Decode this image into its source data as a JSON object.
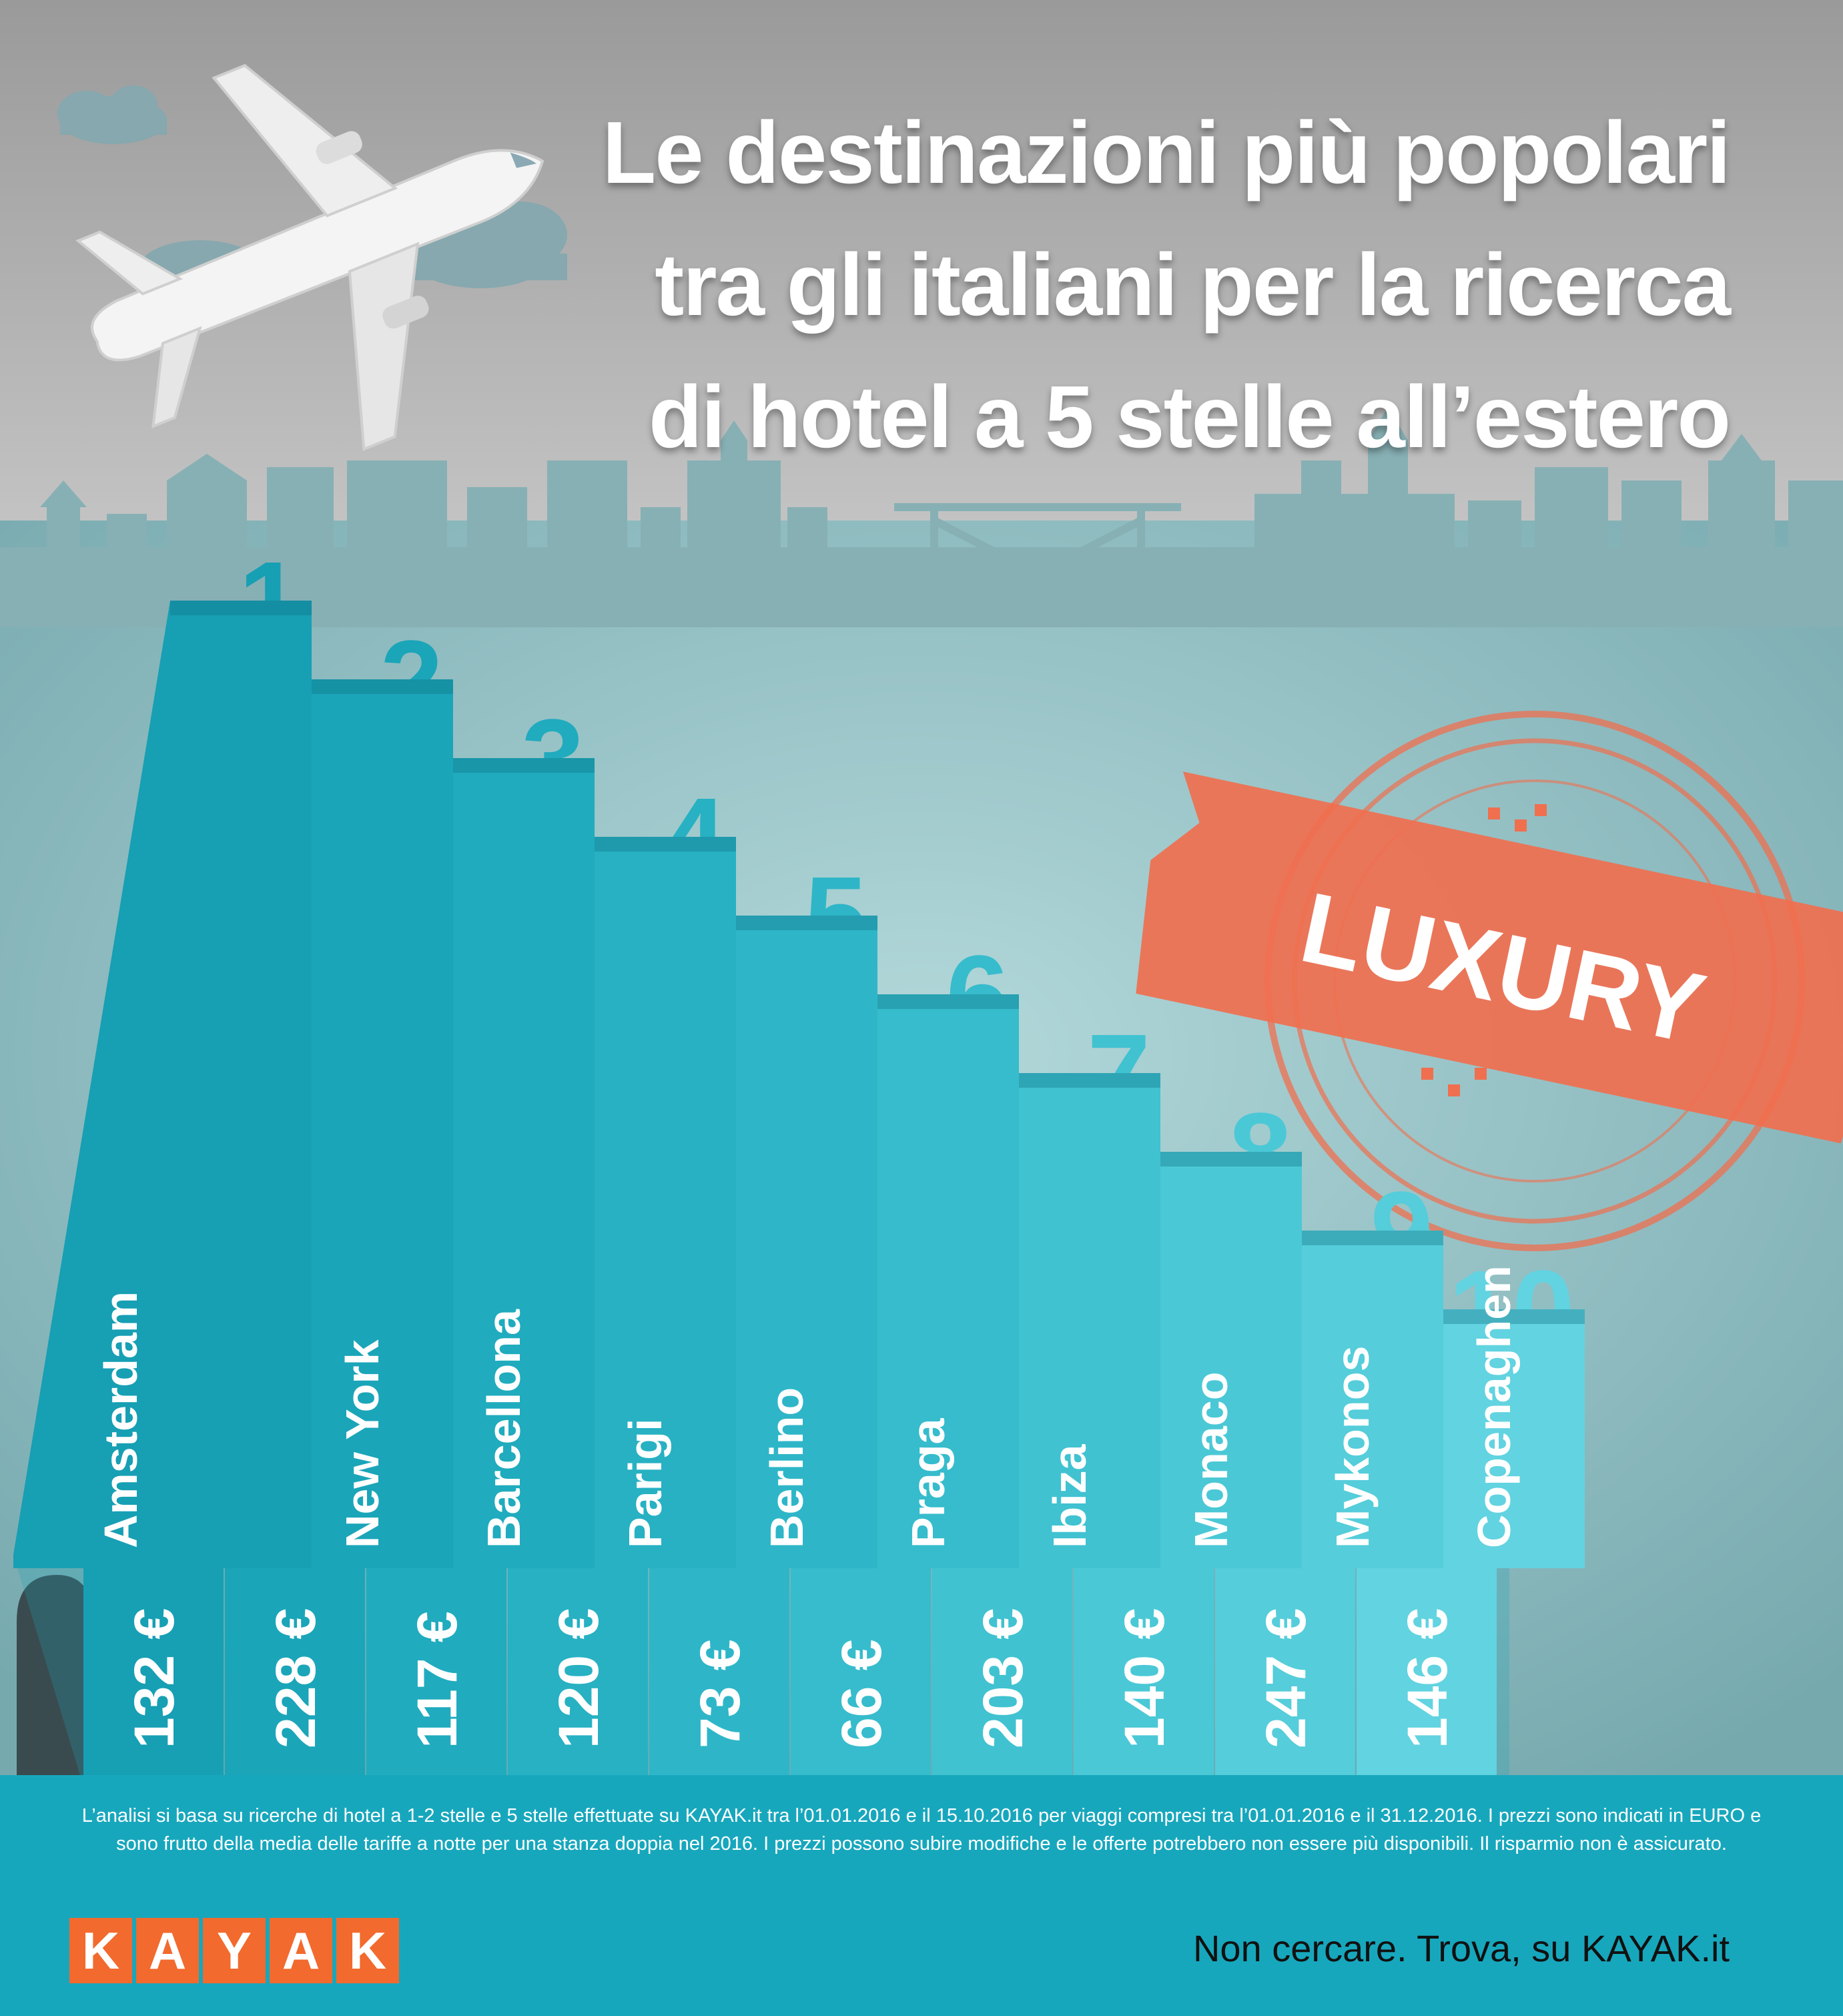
{
  "title_lines": [
    "Le destinazioni più popolari",
    "tra gli italiani per la ricerca",
    "di hotel a 5 stelle all’estero"
  ],
  "stamp": {
    "label": "LUXURY",
    "color": "#f06f4f"
  },
  "chart_data": {
    "type": "bar",
    "categories": [
      "Amsterdam",
      "New York",
      "Barcellona",
      "Parigi",
      "Berlino",
      "Praga",
      "Ibiza",
      "Monaco",
      "Mykonos",
      "Copenaghen"
    ],
    "ranks": [
      "1",
      "2",
      "3",
      "4",
      "5",
      "6",
      "7",
      "8",
      "9",
      "10"
    ],
    "values": [
      132,
      228,
      117,
      120,
      73,
      66,
      203,
      140,
      247,
      146
    ],
    "value_labels": [
      "132 €",
      "228 €",
      "117 €",
      "120 €",
      "73 €",
      "66 €",
      "203 €",
      "140 €",
      "247 €",
      "146 €"
    ],
    "colors": [
      "#179fb4",
      "#1ba5b9",
      "#20abbe",
      "#27b1c3",
      "#2eb6c8",
      "#36bccc",
      "#40c2d1",
      "#4bc8d6",
      "#55cdda",
      "#62d3e0"
    ]
  },
  "footer": {
    "note": "L’analisi si basa su ricerche di hotel a 1-2 stelle e 5 stelle effettuate su KAYAK.it tra l’01.01.2016 e il 15.10.2016 per viaggi compresi tra l’01.01.2016 e il 31.12.2016. I prezzi sono indicati in EURO e sono frutto della media delle tariffe a notte per una stanza doppia nel 2016. I prezzi possono subire modifiche e le offerte potrebbero non essere più disponibili. Il risparmio non è assicurato.",
    "logo_letters": [
      "K",
      "A",
      "Y",
      "A",
      "K"
    ],
    "tagline": "Non cercare. Trova, su KAYAK.it"
  }
}
